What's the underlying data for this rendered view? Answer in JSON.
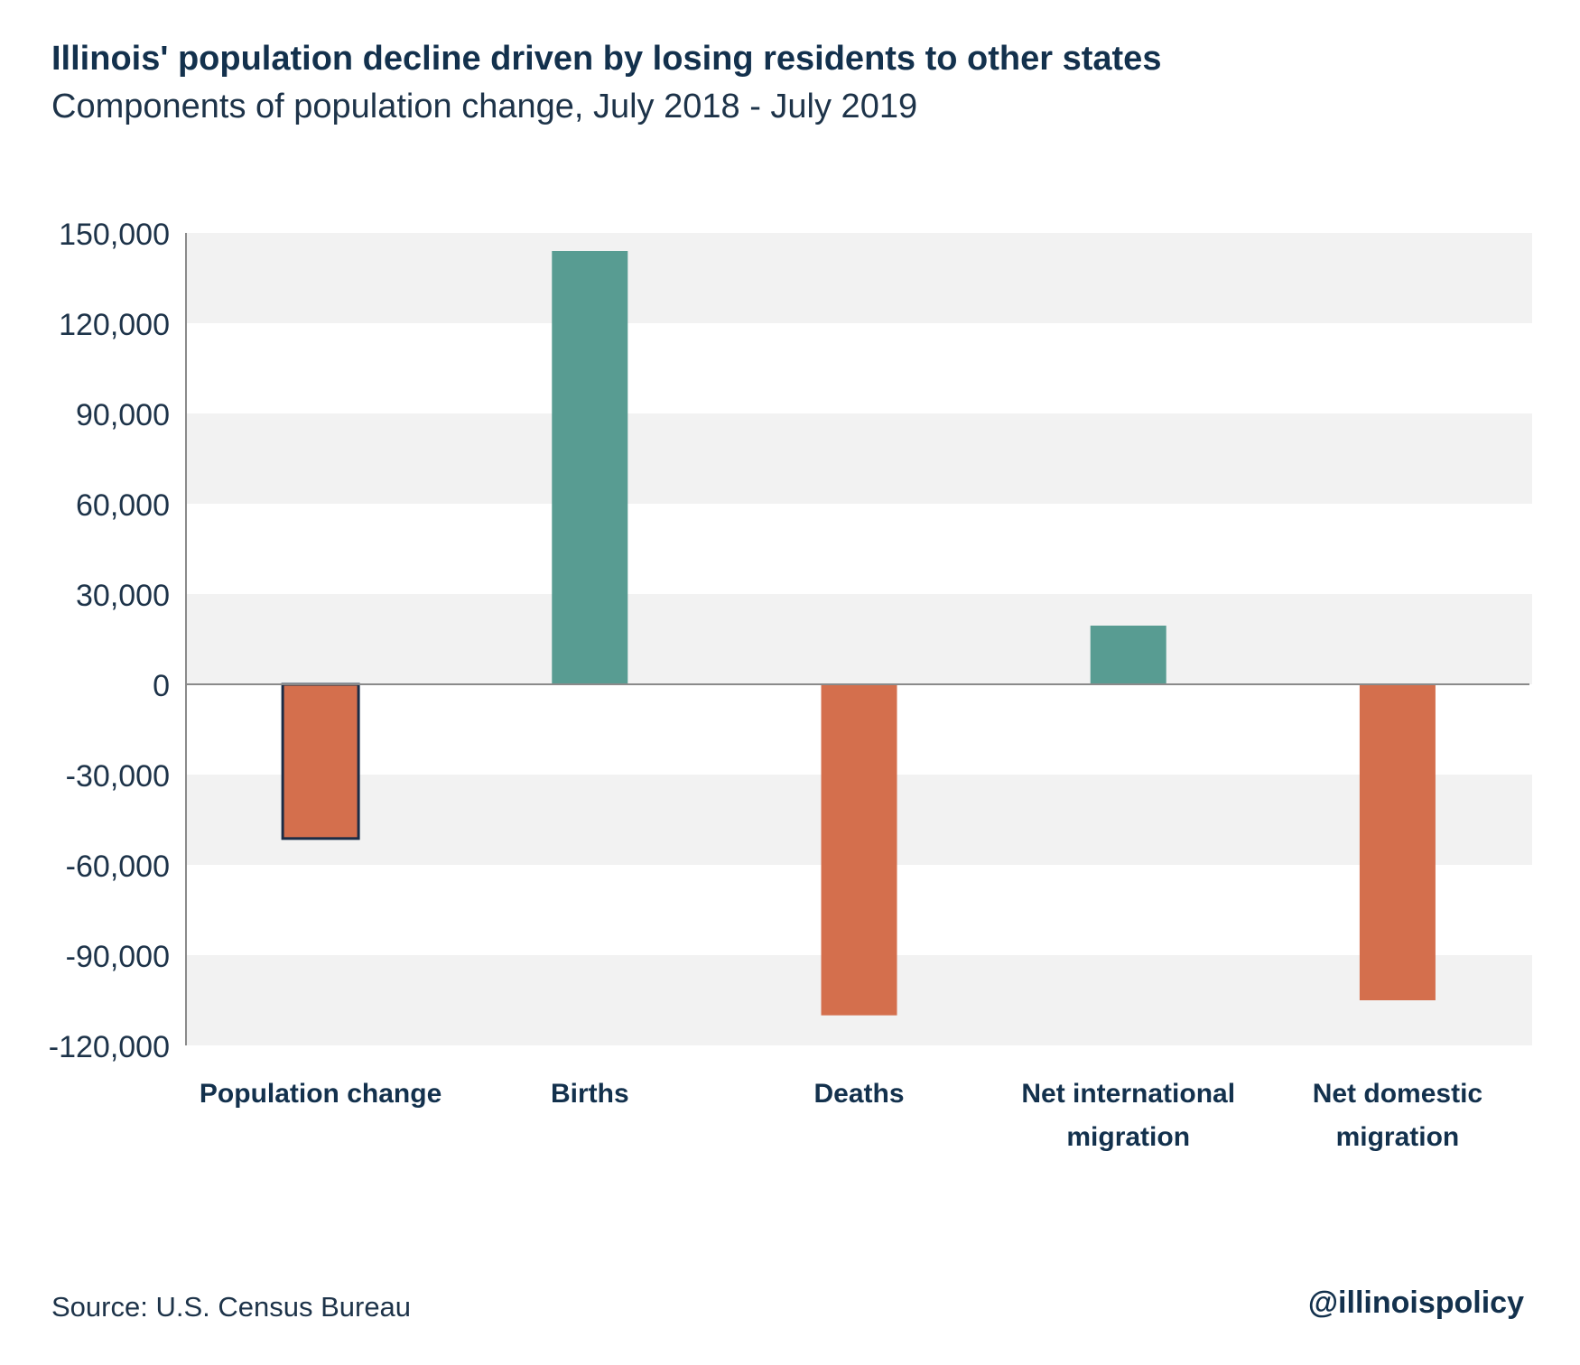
{
  "title": "Illinois' population decline driven by losing residents to other states",
  "subtitle": "Components of population change, July 2018 - July 2019",
  "source": "Source: U.S. Census Bureau",
  "handle": "@illinoispolicy",
  "colors": {
    "positive": "#589c92",
    "negative": "#d46f4d",
    "highlight_outline": "#1b2c46",
    "band": "#f2f2f2",
    "axis": "#8a8a8a",
    "text": "#1d3349"
  },
  "chart_data": {
    "type": "bar",
    "title": "Illinois' population decline driven by losing residents to other states",
    "subtitle": "Components of population change, July 2018 - July 2019",
    "xlabel": "",
    "ylabel": "",
    "ylim": [
      -120000,
      150000
    ],
    "yticks": [
      150000,
      120000,
      90000,
      60000,
      30000,
      0,
      -30000,
      -60000,
      -90000,
      -120000
    ],
    "ytick_labels": [
      "150,000",
      "120,000",
      "90,000",
      "60,000",
      "30,000",
      "0",
      "-30,000",
      "-60,000",
      "-90,000",
      "-120,000"
    ],
    "grid": "alternating horizontal bands",
    "categories": [
      [
        "Population change"
      ],
      [
        "Births"
      ],
      [
        "Deaths"
      ],
      [
        "Net international",
        "migration"
      ],
      [
        "Net domestic",
        "migration"
      ]
    ],
    "values": [
      -51250,
      144000,
      -110000,
      19500,
      -105000
    ],
    "highlighted_category_index": 0
  }
}
